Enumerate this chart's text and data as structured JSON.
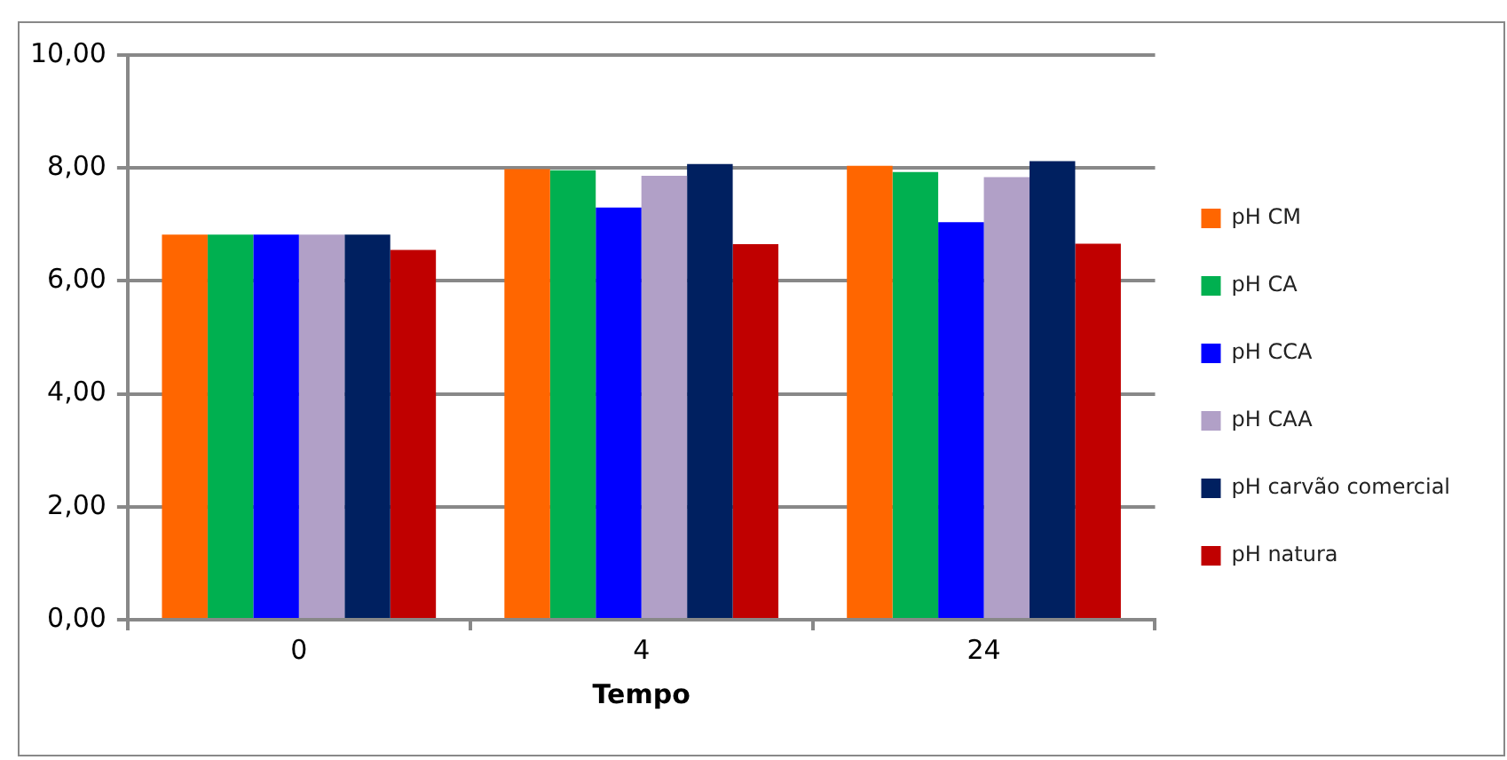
{
  "chart_data": {
    "type": "bar",
    "xlabel": "Tempo",
    "categories": [
      "0",
      "4",
      "24"
    ],
    "series": [
      {
        "name": "pH CM",
        "color": "#ff6600",
        "values": [
          6.82,
          7.98,
          8.04
        ]
      },
      {
        "name": "pH CA",
        "color": "#00b050",
        "values": [
          6.82,
          7.96,
          7.93
        ]
      },
      {
        "name": "pH CCA",
        "color": "#0000ff",
        "values": [
          6.82,
          7.3,
          7.04
        ]
      },
      {
        "name": "pH CAA",
        "color": "#b1a0c7",
        "values": [
          6.82,
          7.86,
          7.84
        ]
      },
      {
        "name": "pH carvão comercial",
        "color": "#002060",
        "values": [
          6.82,
          8.07,
          8.12
        ]
      },
      {
        "name": "pH natura",
        "color": "#c00000",
        "values": [
          6.55,
          6.65,
          6.66
        ]
      }
    ],
    "ylim": [
      0,
      10
    ],
    "yticks": [
      {
        "value": 0,
        "label": "0,00"
      },
      {
        "value": 2,
        "label": "2,00"
      },
      {
        "value": 4,
        "label": "4,00"
      },
      {
        "value": 6,
        "label": "6,00"
      },
      {
        "value": 8,
        "label": "8,00"
      },
      {
        "value": 10,
        "label": "10,00"
      }
    ],
    "grid": "y",
    "legend": "right"
  }
}
